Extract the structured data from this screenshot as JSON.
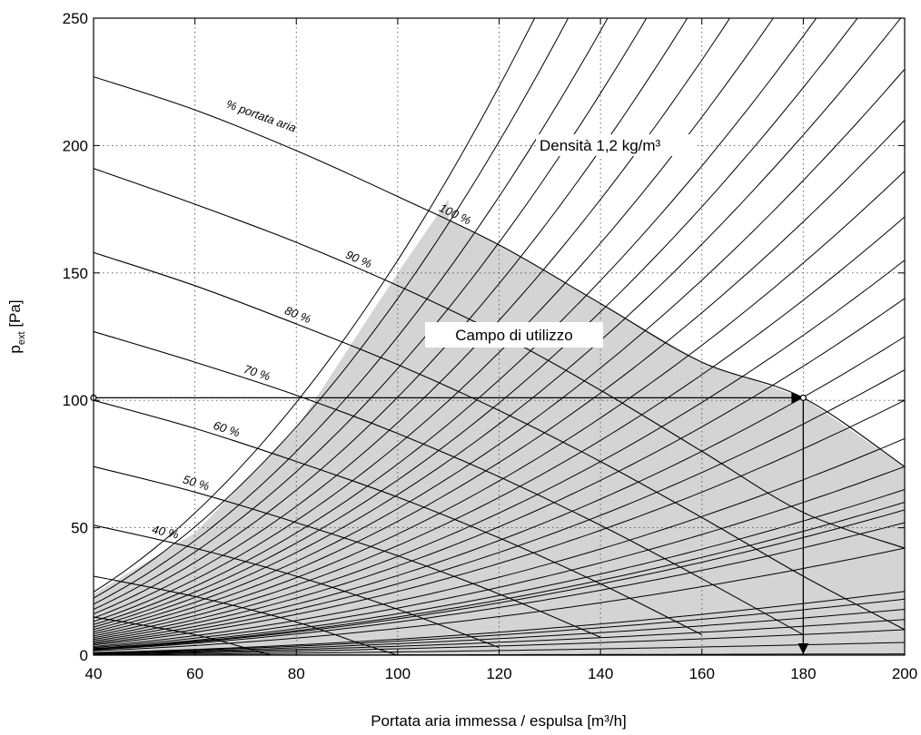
{
  "chart_data": {
    "type": "line",
    "xlabel": "Portata aria immessa / espulsa [m³/h]",
    "ylabel_main": "p",
    "ylabel_sub": "ext",
    "ylabel_unit": " [Pa]",
    "xlim": [
      40,
      200
    ],
    "ylim": [
      0,
      250
    ],
    "x_ticks": [
      40,
      60,
      80,
      100,
      120,
      140,
      160,
      180,
      200
    ],
    "y_ticks": [
      0,
      50,
      100,
      150,
      200,
      250
    ],
    "grid": true,
    "annotations": {
      "density": "Densità 1,2 kg/m³",
      "field": "Campo di utilizzo",
      "curve_family": "% portata aria"
    },
    "fan_curves": [
      {
        "label": "100 %",
        "points": [
          [
            40,
            227
          ],
          [
            60,
            214
          ],
          [
            80,
            198
          ],
          [
            100,
            180
          ],
          [
            120,
            161
          ],
          [
            140,
            138
          ],
          [
            160,
            115
          ],
          [
            180,
            101
          ],
          [
            200,
            74
          ]
        ]
      },
      {
        "label": "90 %",
        "points": [
          [
            40,
            191
          ],
          [
            60,
            177
          ],
          [
            80,
            162
          ],
          [
            100,
            145
          ],
          [
            120,
            126
          ],
          [
            140,
            104
          ],
          [
            160,
            80
          ],
          [
            180,
            56
          ],
          [
            200,
            42
          ]
        ]
      },
      {
        "label": "80 %",
        "points": [
          [
            40,
            158
          ],
          [
            60,
            145
          ],
          [
            80,
            130
          ],
          [
            100,
            114
          ],
          [
            120,
            96
          ],
          [
            140,
            76
          ],
          [
            160,
            54
          ],
          [
            180,
            31
          ],
          [
            200,
            10
          ]
        ]
      },
      {
        "label": "70 %",
        "points": [
          [
            40,
            127
          ],
          [
            60,
            115
          ],
          [
            80,
            102
          ],
          [
            100,
            87
          ],
          [
            120,
            70
          ],
          [
            140,
            51
          ],
          [
            160,
            30
          ],
          [
            180,
            8
          ]
        ]
      },
      {
        "label": "60 %",
        "points": [
          [
            40,
            100
          ],
          [
            60,
            89
          ],
          [
            80,
            76
          ],
          [
            100,
            62
          ],
          [
            120,
            46
          ],
          [
            140,
            28
          ],
          [
            160,
            8
          ]
        ]
      },
      {
        "label": "50 %",
        "points": [
          [
            40,
            74
          ],
          [
            60,
            64
          ],
          [
            80,
            52
          ],
          [
            100,
            39
          ],
          [
            120,
            24
          ],
          [
            140,
            7
          ]
        ]
      },
      {
        "label": "40 %",
        "points": [
          [
            40,
            51
          ],
          [
            60,
            42
          ],
          [
            80,
            31
          ],
          [
            100,
            18
          ],
          [
            120,
            3
          ]
        ]
      },
      {
        "label": "",
        "points": [
          [
            40,
            31
          ],
          [
            60,
            23
          ],
          [
            80,
            13
          ],
          [
            92,
            5
          ],
          [
            100,
            0
          ]
        ]
      },
      {
        "label": "",
        "points": [
          [
            40,
            15
          ],
          [
            60,
            8
          ],
          [
            75,
            0
          ]
        ]
      }
    ],
    "system_curves": {
      "pressure_at_x": 200,
      "values": [
        0.5,
        5,
        10,
        14,
        18,
        22,
        25,
        42,
        52,
        57,
        60,
        65,
        74,
        85,
        100,
        112,
        125,
        140,
        155,
        172,
        190,
        210,
        230,
        252,
        275,
        300,
        330,
        365,
        405,
        450,
        500,
        560,
        620
      ]
    },
    "usage_field": {
      "label": "Campo di utilizzo",
      "left_boundary_points": [
        [
          40,
          24
        ],
        [
          60,
          48
        ],
        [
          80,
          89
        ],
        [
          100,
          150
        ],
        [
          110,
          179
        ]
      ]
    },
    "operating_point": {
      "x": 180,
      "y": 101
    }
  }
}
